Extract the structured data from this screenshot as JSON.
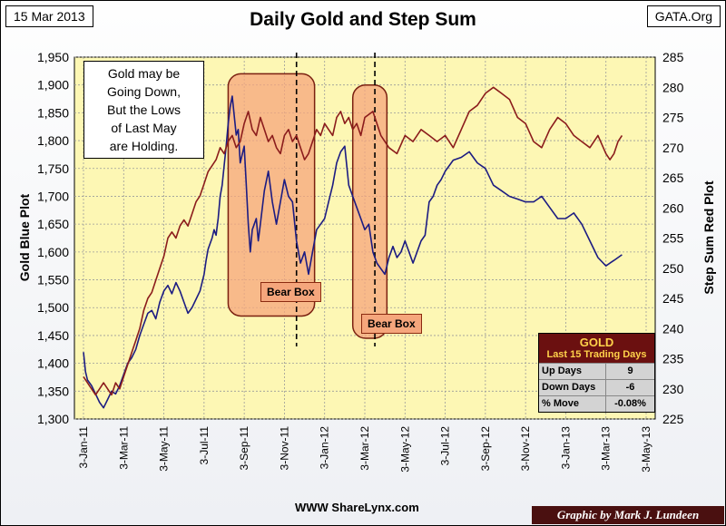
{
  "header": {
    "date": "15 Mar 2013",
    "title": "Daily Gold and Step Sum",
    "source": "GATA.Org"
  },
  "note": {
    "lines": [
      "Gold may be",
      "Going Down,",
      "But the Lows",
      "of Last May",
      "are Holding."
    ]
  },
  "annotations": {
    "bear_box_1": "Bear Box",
    "bear_box_2": "Bear Box"
  },
  "stats_box": {
    "title": "GOLD",
    "subtitle": "Last 15 Trading Days",
    "rows": [
      {
        "label": "Up Days",
        "value": "9"
      },
      {
        "label": "Down Days",
        "value": "-6"
      },
      {
        "label": "% Move",
        "value": "-0.08%"
      }
    ]
  },
  "footer": {
    "website": "WWW ShareLynx.com",
    "credit": "Graphic by Mark J. Lundeen"
  },
  "colors": {
    "gold": "#1c1c82",
    "step_sum": "#8b1c1c",
    "plot_bg": "#fdf7b4",
    "bear_fill": "#f5a67c",
    "bear_stroke": "#7a2010"
  },
  "chart_data": {
    "type": "line",
    "title": "Daily Gold and Step Sum",
    "ylabel": "Gold Blue Plot",
    "y2label": "Step Sum Red Plot",
    "ylim": [
      1300,
      1950
    ],
    "y2lim": [
      225,
      285
    ],
    "yticks": [
      "1,300",
      "1,350",
      "1,400",
      "1,450",
      "1,500",
      "1,550",
      "1,600",
      "1,650",
      "1,700",
      "1,750",
      "1,800",
      "1,850",
      "1,900",
      "1,950"
    ],
    "y2ticks": [
      "225",
      "230",
      "235",
      "240",
      "245",
      "250",
      "255",
      "260",
      "265",
      "270",
      "275",
      "280",
      "285"
    ],
    "x_categories": [
      "3-Jan-11",
      "3-Mar-11",
      "3-May-11",
      "3-Jul-11",
      "3-Sep-11",
      "3-Nov-11",
      "3-Jan-12",
      "3-Mar-12",
      "3-May-12",
      "3-Jul-12",
      "3-Sep-12",
      "3-Nov-12",
      "3-Jan-13",
      "3-Mar-13",
      "3-May-13"
    ],
    "grid": true,
    "series": [
      {
        "name": "Gold",
        "axis": "left",
        "x": [
          0,
          0.05,
          0.1,
          0.2,
          0.3,
          0.4,
          0.5,
          0.6,
          0.7,
          0.8,
          0.9,
          1.0,
          1.1,
          1.2,
          1.3,
          1.4,
          1.5,
          1.6,
          1.7,
          1.8,
          1.9,
          2.0,
          2.1,
          2.2,
          2.3,
          2.4,
          2.5,
          2.6,
          2.7,
          2.8,
          2.9,
          3.0,
          3.05,
          3.1,
          3.15,
          3.2,
          3.25,
          3.3,
          3.35,
          3.4,
          3.45,
          3.5,
          3.55,
          3.6,
          3.65,
          3.7,
          3.75,
          3.8,
          3.85,
          3.9,
          4.0,
          4.05,
          4.1,
          4.15,
          4.2,
          4.3,
          4.35,
          4.4,
          4.5,
          4.6,
          4.7,
          4.8,
          4.9,
          5.0,
          5.1,
          5.2,
          5.3,
          5.4,
          5.5,
          5.6,
          5.7,
          5.8,
          5.9,
          6.0,
          6.1,
          6.2,
          6.3,
          6.4,
          6.5,
          6.6,
          6.7,
          6.8,
          6.9,
          7.0,
          7.1,
          7.2,
          7.3,
          7.4,
          7.5,
          7.6,
          7.7,
          7.8,
          7.9,
          8.0,
          8.1,
          8.2,
          8.3,
          8.4,
          8.5,
          8.6,
          8.7,
          8.8,
          8.9,
          9.0,
          9.2,
          9.4,
          9.6,
          9.8,
          10.0,
          10.2,
          10.4,
          10.6,
          10.8,
          11.0,
          11.2,
          11.4,
          11.6,
          11.8,
          12.0,
          12.2,
          12.4,
          12.6,
          12.8,
          13.0,
          13.1,
          13.2,
          13.3,
          13.4
        ],
        "values": [
          1420,
          1385,
          1370,
          1360,
          1345,
          1330,
          1320,
          1335,
          1350,
          1345,
          1360,
          1380,
          1400,
          1410,
          1425,
          1450,
          1470,
          1490,
          1495,
          1480,
          1510,
          1530,
          1540,
          1525,
          1545,
          1530,
          1510,
          1490,
          1500,
          1515,
          1530,
          1560,
          1585,
          1605,
          1615,
          1625,
          1640,
          1630,
          1660,
          1700,
          1720,
          1755,
          1790,
          1830,
          1860,
          1880,
          1845,
          1810,
          1820,
          1760,
          1790,
          1720,
          1650,
          1600,
          1640,
          1660,
          1620,
          1650,
          1710,
          1745,
          1690,
          1650,
          1690,
          1730,
          1700,
          1690,
          1620,
          1580,
          1600,
          1560,
          1600,
          1640,
          1650,
          1660,
          1690,
          1720,
          1760,
          1780,
          1790,
          1720,
          1700,
          1680,
          1660,
          1640,
          1650,
          1600,
          1580,
          1570,
          1560,
          1590,
          1610,
          1590,
          1600,
          1620,
          1600,
          1580,
          1600,
          1620,
          1630,
          1690,
          1700,
          1720,
          1730,
          1745,
          1765,
          1770,
          1780,
          1760,
          1750,
          1720,
          1710,
          1700,
          1695,
          1690,
          1690,
          1700,
          1680,
          1660,
          1660,
          1670,
          1650,
          1620,
          1590,
          1575,
          1580,
          1585,
          1590,
          1595
        ]
      },
      {
        "name": "Step Sum",
        "axis": "right",
        "x": [
          0,
          0.1,
          0.2,
          0.3,
          0.4,
          0.5,
          0.6,
          0.7,
          0.8,
          0.9,
          1.0,
          1.1,
          1.2,
          1.3,
          1.4,
          1.5,
          1.6,
          1.7,
          1.8,
          1.9,
          2.0,
          2.1,
          2.2,
          2.3,
          2.4,
          2.5,
          2.6,
          2.7,
          2.8,
          2.9,
          3.0,
          3.1,
          3.2,
          3.3,
          3.4,
          3.5,
          3.6,
          3.7,
          3.8,
          3.9,
          4.0,
          4.1,
          4.2,
          4.3,
          4.4,
          4.5,
          4.6,
          4.7,
          4.8,
          4.9,
          5.0,
          5.1,
          5.2,
          5.3,
          5.4,
          5.5,
          5.6,
          5.7,
          5.8,
          5.9,
          6.0,
          6.1,
          6.2,
          6.3,
          6.4,
          6.5,
          6.6,
          6.7,
          6.8,
          6.9,
          7.0,
          7.2,
          7.4,
          7.6,
          7.8,
          8.0,
          8.2,
          8.4,
          8.6,
          8.8,
          9.0,
          9.2,
          9.4,
          9.6,
          9.8,
          10.0,
          10.2,
          10.4,
          10.6,
          10.8,
          11.0,
          11.2,
          11.4,
          11.6,
          11.8,
          12.0,
          12.2,
          12.4,
          12.6,
          12.8,
          13.0,
          13.1,
          13.2,
          13.3,
          13.4
        ],
        "values": [
          232,
          231,
          230,
          229,
          230,
          231,
          230,
          229,
          231,
          230,
          232,
          234,
          236,
          238,
          240,
          243,
          245,
          246,
          248,
          250,
          252,
          255,
          256,
          255,
          257,
          258,
          257,
          259,
          261,
          262,
          264,
          266,
          267,
          268,
          270,
          269,
          271,
          272,
          270,
          271,
          274,
          276,
          273,
          272,
          275,
          273,
          271,
          272,
          270,
          269,
          272,
          273,
          271,
          272,
          270,
          268,
          269,
          271,
          273,
          272,
          274,
          273,
          272,
          275,
          276,
          274,
          275,
          273,
          274,
          272,
          275,
          276,
          272,
          270,
          269,
          272,
          271,
          273,
          272,
          271,
          272,
          270,
          273,
          276,
          277,
          279,
          280,
          279,
          278,
          275,
          274,
          271,
          270,
          273,
          275,
          274,
          272,
          271,
          270,
          272,
          269,
          268,
          269,
          271,
          272
        ]
      }
    ],
    "bear_boxes": [
      {
        "x_start": 3.6,
        "x_end": 5.75,
        "y_top_gold": 1920,
        "y_bottom_gold": 1485
      },
      {
        "x_start": 6.7,
        "x_end": 7.55,
        "y_top_gold": 1900,
        "y_bottom_gold": 1445
      }
    ],
    "vertical_markers_x": [
      5.3,
      7.25
    ]
  }
}
